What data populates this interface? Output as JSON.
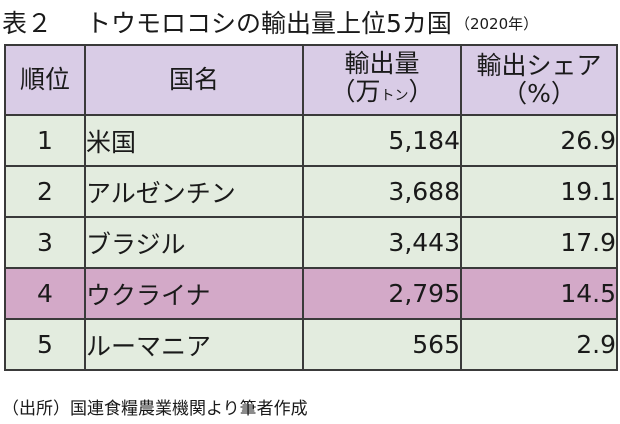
{
  "title": {
    "label": "表２",
    "text": "トウモロコシの輸出量上位5カ国",
    "year": "（2020年）"
  },
  "table": {
    "headers": {
      "rank": "順位",
      "country": "国名",
      "volume_line1": "輸出量",
      "volume_open": "（万",
      "volume_unit": "トン",
      "volume_close": "）",
      "share_line1": "輸出シェア",
      "share_line2": "（%）"
    },
    "rows": [
      {
        "rank": "1",
        "country": "米国",
        "volume": "5,184",
        "share": "26.9"
      },
      {
        "rank": "2",
        "country": "アルゼンチン",
        "volume": "3,688",
        "share": "19.1"
      },
      {
        "rank": "3",
        "country": "ブラジル",
        "volume": "3,443",
        "share": "17.9"
      },
      {
        "rank": "4",
        "country": "ウクライナ",
        "volume": "2,795",
        "share": "14.5"
      },
      {
        "rank": "5",
        "country": "ルーマニア",
        "volume": "565",
        "share": "2.9"
      }
    ]
  },
  "source": "（出所）国連食糧農業機関より筆者作成",
  "colors": {
    "header_bg": "#d9cce6",
    "row_bg": "#e3ecdf",
    "highlight_bg": "#d3a9c8",
    "border": "#3a3a3a"
  }
}
